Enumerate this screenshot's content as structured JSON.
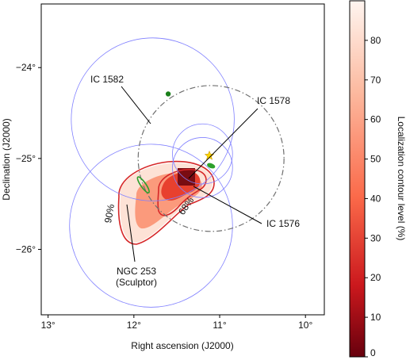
{
  "chart_data": {
    "type": "heatmap",
    "title": "",
    "xlabel": "Right ascension (J2000)",
    "ylabel": "Declination (J2000)",
    "x_reversed": true,
    "xlim": [
      13.08,
      9.78
    ],
    "ylim": [
      -26.72,
      -23.3
    ],
    "x_ticks": [
      {
        "value": 13,
        "label": "13°"
      },
      {
        "value": 12,
        "label": "12°"
      },
      {
        "value": 11,
        "label": "11°"
      },
      {
        "value": 10,
        "label": "10°"
      }
    ],
    "y_ticks": [
      {
        "value": -24,
        "label": "−24°"
      },
      {
        "value": -25,
        "label": "−25°"
      },
      {
        "value": -26,
        "label": "−26°"
      }
    ],
    "colorbar": {
      "label": "Localization contour level (%)",
      "range": [
        0,
        90
      ],
      "ticks": [
        {
          "value": 0,
          "label": "0"
        },
        {
          "value": 10,
          "label": "10"
        },
        {
          "value": 20,
          "label": "20"
        },
        {
          "value": 30,
          "label": "30"
        },
        {
          "value": 40,
          "label": "40"
        },
        {
          "value": 50,
          "label": "50"
        },
        {
          "value": 60,
          "label": "60"
        },
        {
          "value": 70,
          "label": "70"
        },
        {
          "value": 80,
          "label": "80"
        }
      ],
      "colors": [
        "#67000d",
        "#cb181d",
        "#fb6a4a",
        "#fcbba1",
        "#fff5f0"
      ]
    },
    "contours": [
      {
        "level": 90,
        "label": "90%",
        "color": "#d62728"
      },
      {
        "level": 68,
        "label": "68%",
        "color": "#d62728"
      }
    ],
    "circles": [
      {
        "ra": 11.78,
        "dec": -24.57,
        "radius": 0.95,
        "style": "solid",
        "color": "#8080ff"
      },
      {
        "ra": 11.8,
        "dec": -25.74,
        "radius": 0.95,
        "style": "solid",
        "color": "#8080ff"
      },
      {
        "ra": 11.2,
        "dec": -25.1,
        "radius": 0.35,
        "style": "solid",
        "color": "#8080ff"
      },
      {
        "ra": 11.2,
        "dec": -24.95,
        "radius": 0.35,
        "style": "solid",
        "color": "#8080ff"
      },
      {
        "ra": 11.1,
        "dec": -25.0,
        "radius": 0.85,
        "style": "dashdot",
        "color": "#707070"
      }
    ],
    "sources": [
      {
        "name": "IC 1582",
        "ra": 11.6,
        "dec": -24.29,
        "marker": "dot",
        "color": "#1a7f1a"
      },
      {
        "name": "IC 1578",
        "ra": 11.12,
        "dec": -24.97,
        "marker": "star",
        "color": "#ffd700"
      },
      {
        "name": "IC 1576",
        "ra": 11.1,
        "dec": -25.08,
        "marker": "ellipse",
        "color": "#2ca02c"
      },
      {
        "name": "NGC 253\n(Sculptor)",
        "ra": 11.89,
        "dec": -25.29,
        "marker": "ellipse",
        "color": "#2ca02c"
      }
    ]
  }
}
